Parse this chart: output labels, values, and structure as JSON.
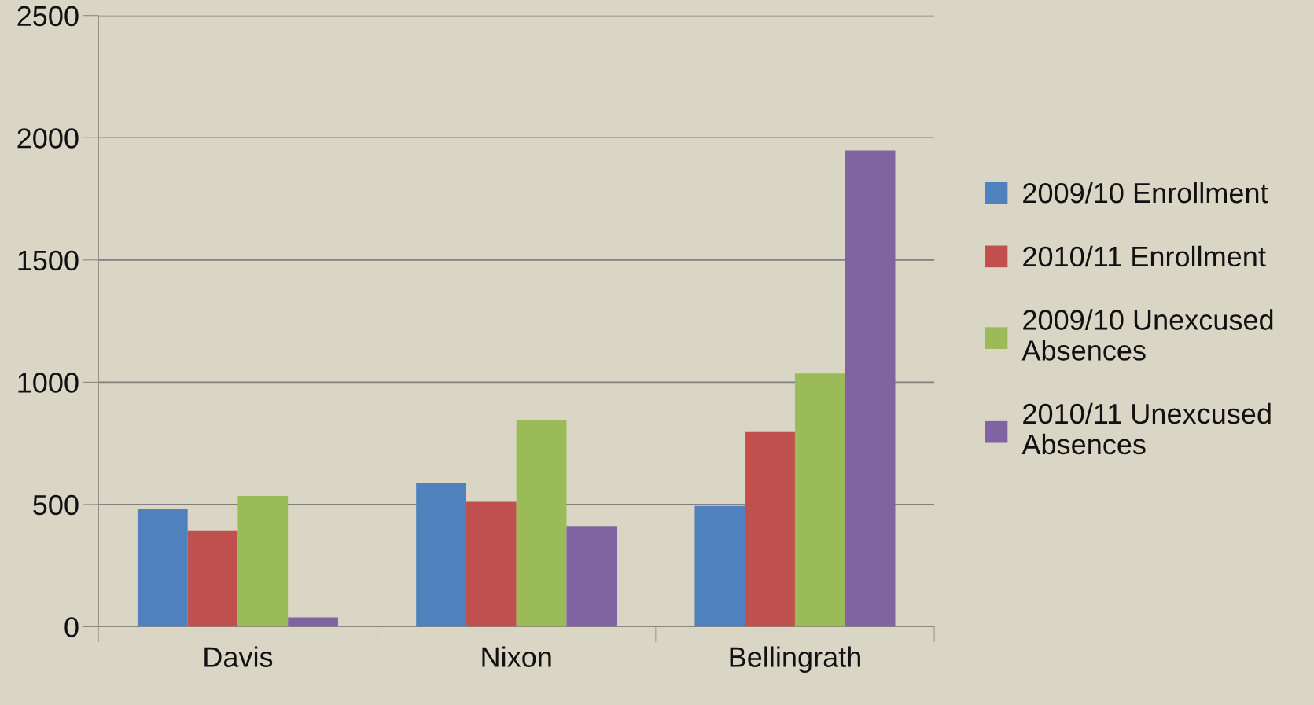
{
  "chart_data": {
    "type": "bar",
    "categories": [
      "Davis",
      "Nixon",
      "Bellingrath"
    ],
    "series": [
      {
        "name": "2009/10 Enrollment",
        "color": "#4f81bd",
        "values": [
          480,
          590,
          494
        ]
      },
      {
        "name": "2010/11 Enrollment",
        "color": "#c0504d",
        "values": [
          394,
          511,
          796
        ]
      },
      {
        "name": "2009/10 Unexcused Absences",
        "color": "#9bbb59",
        "values": [
          535,
          844,
          1036
        ]
      },
      {
        "name": "2010/11 Unexcused Absences",
        "color": "#8064a2",
        "values": [
          38,
          412,
          1948
        ]
      }
    ],
    "ylim": [
      0,
      2500
    ],
    "yticks": [
      0,
      500,
      1000,
      1500,
      2000,
      2500
    ],
    "grid": "y",
    "legend": "right"
  }
}
